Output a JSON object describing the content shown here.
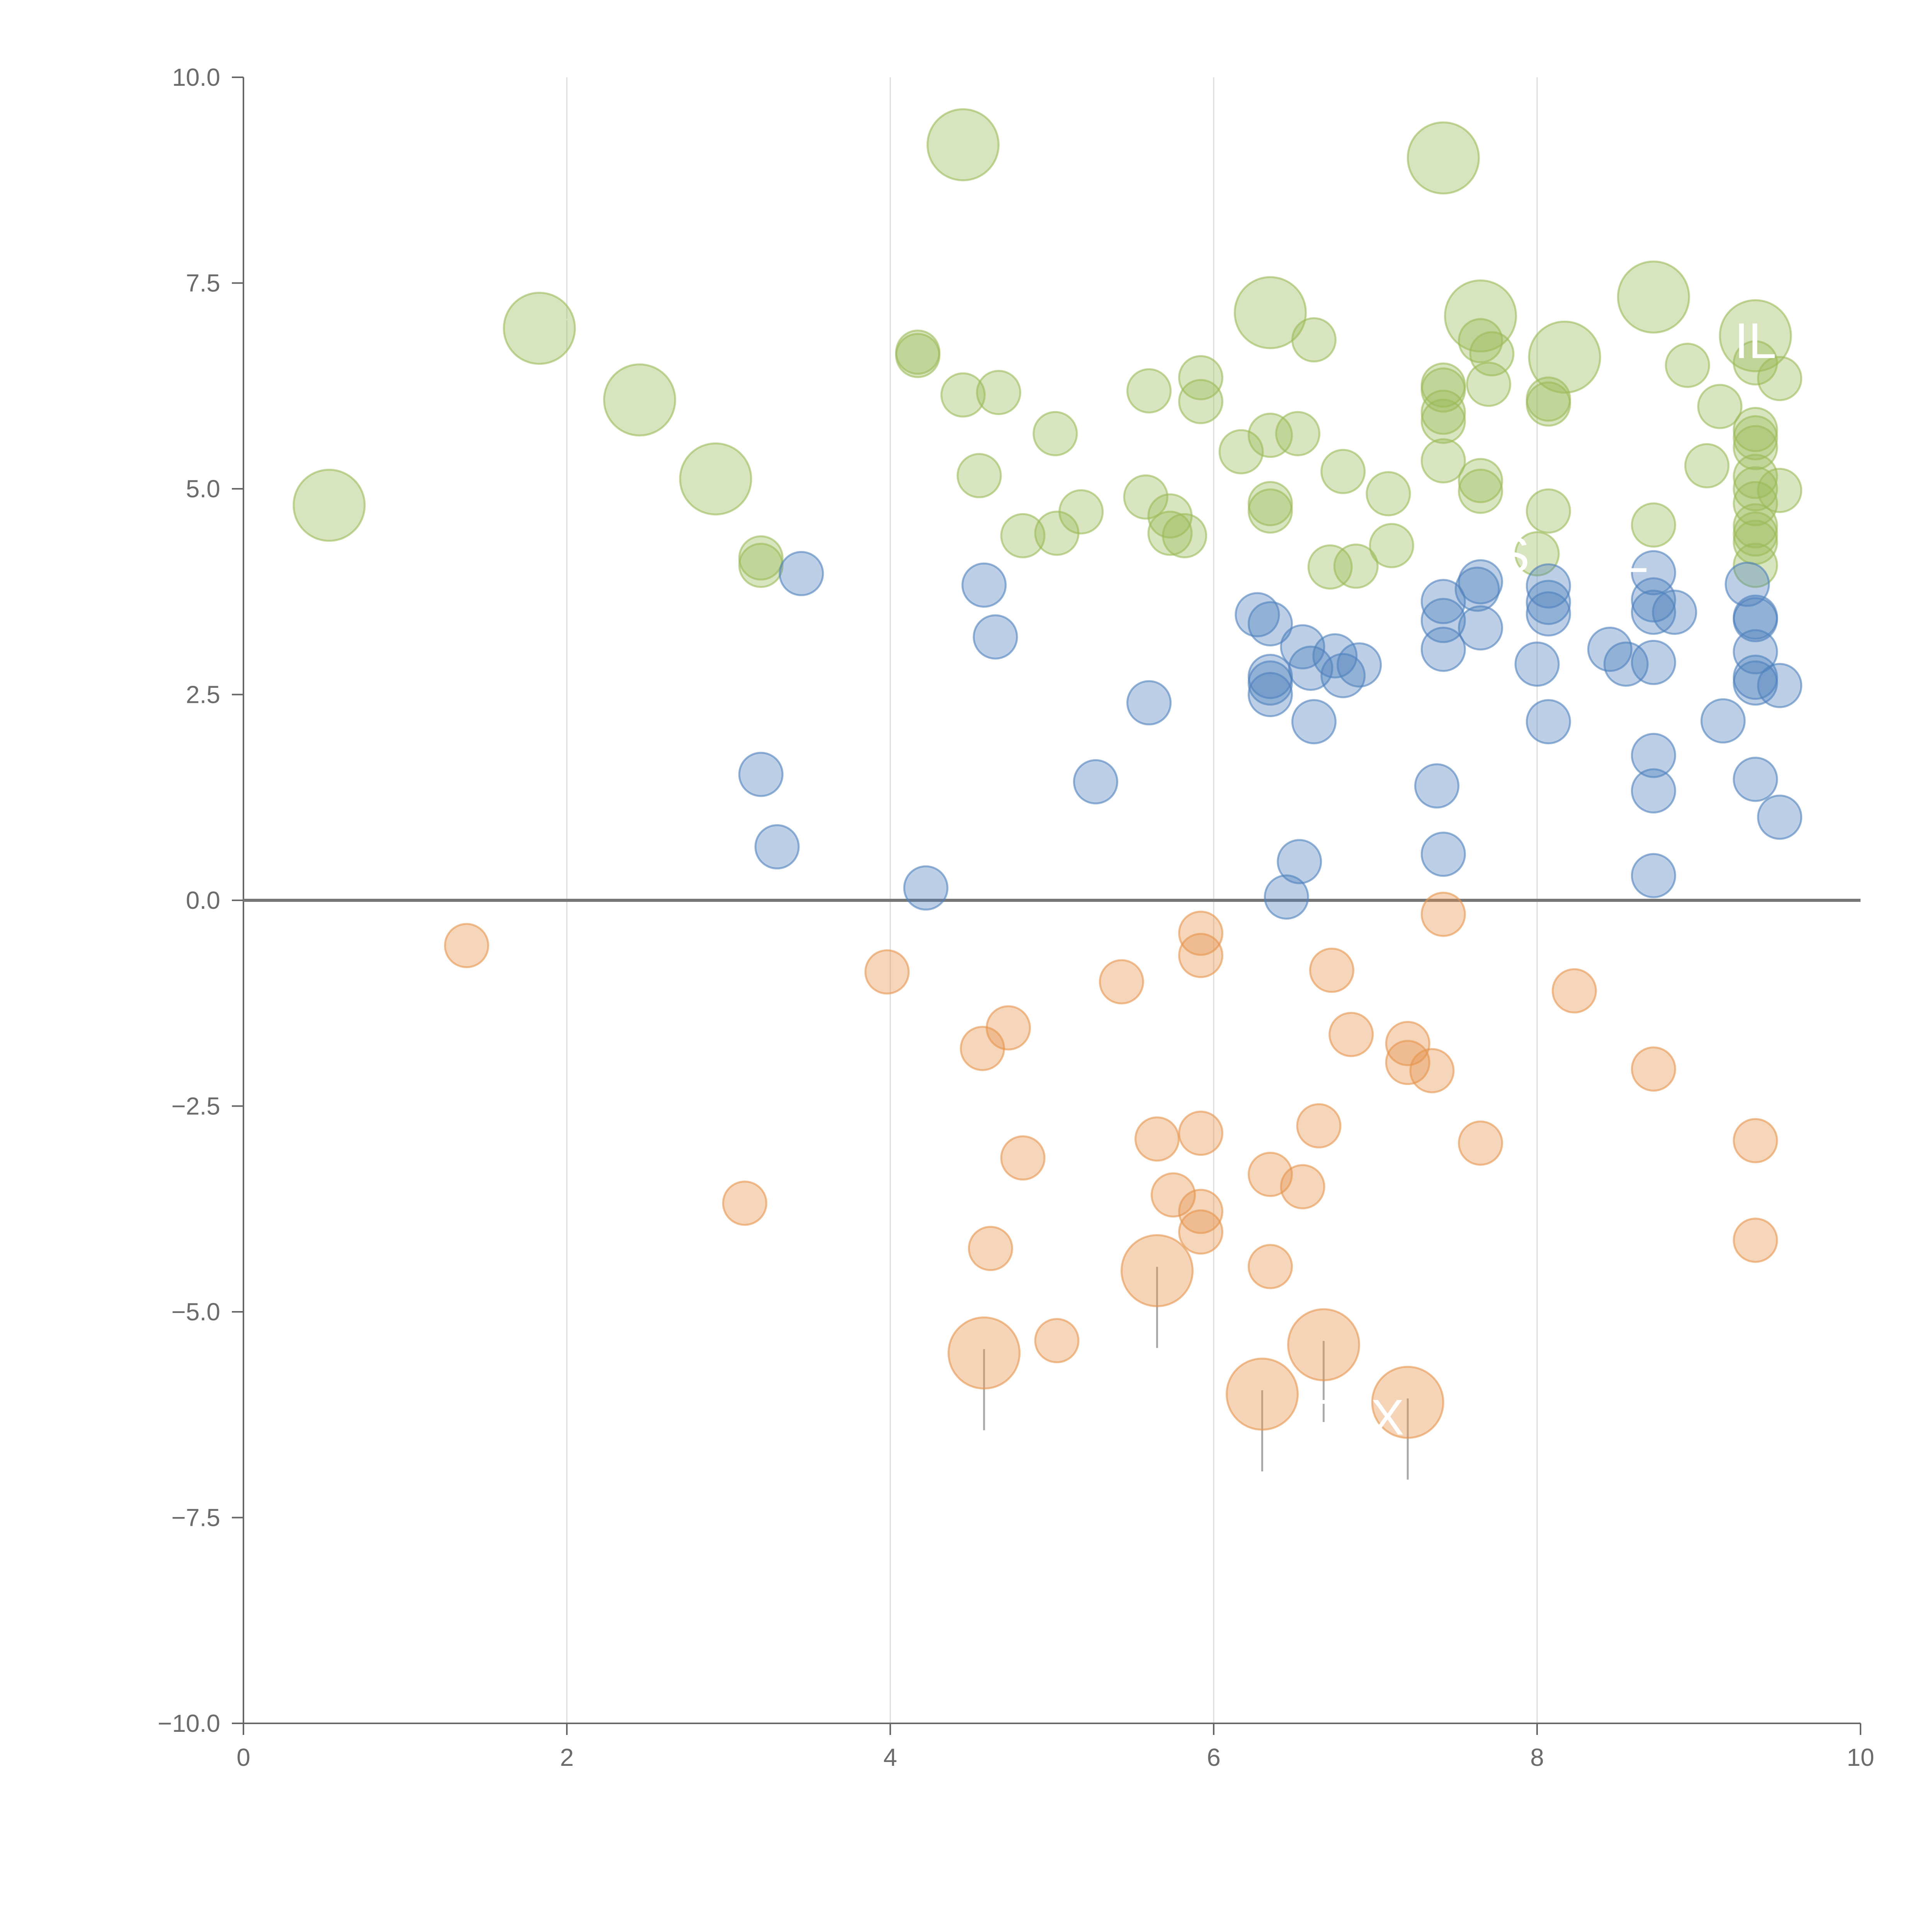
{
  "chart_data": {
    "type": "scatter",
    "title": "",
    "xlabel": "",
    "ylabel": "",
    "xlim": [
      0,
      10
    ],
    "ylim": [
      -10,
      10
    ],
    "x_ticks": [
      0,
      2,
      4,
      6,
      8,
      10
    ],
    "x_tick_labels": [
      "0",
      "2",
      "4",
      "6",
      "8",
      "10"
    ],
    "y_ticks": [
      -10,
      -7.5,
      -5,
      -2.5,
      0,
      2.5,
      5,
      7.5,
      10
    ],
    "y_tick_labels": [
      "−10.0",
      "−7.5",
      "−5.0",
      "−2.5",
      "0.0",
      "2.5",
      "5.0",
      "7.5",
      "10.0"
    ],
    "grid": "vertical",
    "reference_line_y": 0,
    "colors": {
      "high": "#9bbb59",
      "mid": "#4f81bd",
      "low": "#e6944d",
      "axis": "#666666",
      "grid": "#dddddd",
      "label": "#ffffff",
      "leader_light": "#ffffff",
      "leader_dark": "#aaaaaa"
    },
    "series": [
      {
        "name": "high",
        "points": [
          [
            0.53,
            4.8,
            1
          ],
          [
            1.83,
            6.95,
            1
          ],
          [
            2.45,
            6.08,
            1
          ],
          [
            2.92,
            5.12,
            1
          ],
          [
            4.45,
            9.18,
            1
          ],
          [
            7.42,
            9.02,
            1
          ],
          [
            6.35,
            7.14,
            1
          ],
          [
            7.65,
            7.1,
            1
          ],
          [
            8.17,
            6.6,
            1
          ],
          [
            8.72,
            7.33,
            1
          ],
          [
            9.35,
            6.86,
            1
          ],
          [
            3.2,
            4.16,
            0
          ],
          [
            3.2,
            4.07,
            0
          ],
          [
            4.17,
            6.66,
            0
          ],
          [
            4.17,
            6.62,
            0
          ],
          [
            4.45,
            6.14,
            0
          ],
          [
            4.67,
            6.17,
            0
          ],
          [
            4.55,
            5.16,
            0
          ],
          [
            4.82,
            4.43,
            0
          ],
          [
            5.02,
            5.67,
            0
          ],
          [
            5.03,
            4.46,
            0
          ],
          [
            5.18,
            4.72,
            0
          ],
          [
            5.6,
            6.19,
            0
          ],
          [
            5.58,
            4.9,
            0
          ],
          [
            5.73,
            4.67,
            0
          ],
          [
            5.73,
            4.46,
            0
          ],
          [
            5.82,
            4.43,
            0
          ],
          [
            5.92,
            6.35,
            0
          ],
          [
            5.92,
            6.06,
            0
          ],
          [
            6.17,
            5.45,
            0
          ],
          [
            6.35,
            5.65,
            0
          ],
          [
            6.35,
            4.82,
            0
          ],
          [
            6.35,
            4.73,
            0
          ],
          [
            6.52,
            5.67,
            0
          ],
          [
            6.62,
            6.81,
            0
          ],
          [
            6.72,
            4.05,
            0
          ],
          [
            6.8,
            5.21,
            0
          ],
          [
            6.88,
            4.06,
            0
          ],
          [
            7.08,
            4.94,
            0
          ],
          [
            7.1,
            4.31,
            0
          ],
          [
            7.42,
            6.26,
            0
          ],
          [
            7.42,
            6.2,
            0
          ],
          [
            7.42,
            5.93,
            0
          ],
          [
            7.42,
            5.82,
            0
          ],
          [
            7.42,
            5.34,
            0
          ],
          [
            7.65,
            6.8,
            0
          ],
          [
            7.72,
            6.64,
            0
          ],
          [
            7.7,
            6.27,
            0
          ],
          [
            7.65,
            5.1,
            0
          ],
          [
            7.65,
            4.97,
            0
          ],
          [
            8.07,
            6.09,
            0
          ],
          [
            8.07,
            6.03,
            0
          ],
          [
            8.07,
            4.73,
            0
          ],
          [
            8.0,
            4.21,
            0
          ],
          [
            8.72,
            4.56,
            0
          ],
          [
            8.93,
            6.5,
            0
          ],
          [
            9.13,
            6.0,
            0
          ],
          [
            9.05,
            5.28,
            0
          ],
          [
            9.35,
            6.53,
            0
          ],
          [
            9.35,
            5.72,
            0
          ],
          [
            9.35,
            5.62,
            0
          ],
          [
            9.35,
            5.5,
            0
          ],
          [
            9.35,
            5.15,
            0
          ],
          [
            9.35,
            5.0,
            0
          ],
          [
            9.35,
            4.82,
            0
          ],
          [
            9.35,
            4.55,
            0
          ],
          [
            9.35,
            4.45,
            0
          ],
          [
            9.35,
            4.35,
            0
          ],
          [
            9.35,
            4.07,
            0
          ],
          [
            9.5,
            6.34,
            0
          ],
          [
            9.5,
            4.98,
            0
          ]
        ]
      },
      {
        "name": "mid",
        "points": [
          [
            3.45,
            3.97,
            0
          ],
          [
            3.2,
            1.53,
            0
          ],
          [
            3.3,
            0.65,
            0
          ],
          [
            4.22,
            0.15,
            0
          ],
          [
            4.58,
            3.83,
            0
          ],
          [
            4.65,
            3.2,
            0
          ],
          [
            5.27,
            1.44,
            0
          ],
          [
            5.6,
            2.4,
            0
          ],
          [
            6.27,
            3.47,
            0
          ],
          [
            6.35,
            3.36,
            0
          ],
          [
            6.35,
            2.72,
            0
          ],
          [
            6.35,
            2.64,
            0
          ],
          [
            6.35,
            2.5,
            0
          ],
          [
            6.55,
            3.08,
            0
          ],
          [
            6.6,
            2.82,
            0
          ],
          [
            6.75,
            2.97,
            0
          ],
          [
            6.8,
            2.73,
            0
          ],
          [
            6.9,
            2.86,
            0
          ],
          [
            6.62,
            2.17,
            0
          ],
          [
            6.53,
            0.47,
            0
          ],
          [
            6.45,
            0.04,
            0
          ],
          [
            7.38,
            1.39,
            0
          ],
          [
            7.42,
            3.63,
            0
          ],
          [
            7.42,
            3.4,
            0
          ],
          [
            7.42,
            3.05,
            0
          ],
          [
            7.42,
            0.56,
            0
          ],
          [
            7.65,
            3.87,
            0
          ],
          [
            7.63,
            3.78,
            0
          ],
          [
            7.65,
            3.31,
            0
          ],
          [
            8.07,
            3.82,
            0
          ],
          [
            8.07,
            3.62,
            0
          ],
          [
            8.07,
            3.48,
            0
          ],
          [
            8.0,
            2.87,
            0
          ],
          [
            8.07,
            2.17,
            0
          ],
          [
            8.45,
            3.05,
            0
          ],
          [
            8.55,
            2.87,
            0
          ],
          [
            8.72,
            3.98,
            0
          ],
          [
            8.72,
            3.65,
            0
          ],
          [
            8.72,
            3.5,
            0
          ],
          [
            8.85,
            3.5,
            0
          ],
          [
            8.72,
            2.89,
            0
          ],
          [
            8.72,
            1.76,
            0
          ],
          [
            8.72,
            1.33,
            0
          ],
          [
            8.72,
            0.3,
            0
          ],
          [
            9.3,
            3.84,
            0
          ],
          [
            9.35,
            3.44,
            0
          ],
          [
            9.35,
            3.41,
            0
          ],
          [
            9.35,
            3.02,
            0
          ],
          [
            9.35,
            2.71,
            0
          ],
          [
            9.35,
            2.64,
            0
          ],
          [
            9.5,
            2.61,
            0
          ],
          [
            9.15,
            2.18,
            0
          ],
          [
            9.35,
            1.47,
            0
          ],
          [
            9.5,
            1.01,
            0
          ]
        ]
      },
      {
        "name": "low",
        "points": [
          [
            1.38,
            -0.55,
            0
          ],
          [
            3.98,
            -0.87,
            0
          ],
          [
            3.1,
            -3.68,
            0
          ],
          [
            4.57,
            -1.8,
            0
          ],
          [
            4.73,
            -1.55,
            0
          ],
          [
            4.82,
            -3.13,
            0
          ],
          [
            4.62,
            -4.23,
            0
          ],
          [
            5.03,
            -5.35,
            0
          ],
          [
            5.43,
            -0.99,
            0
          ],
          [
            5.65,
            -2.9,
            0
          ],
          [
            5.75,
            -3.58,
            0
          ],
          [
            5.92,
            -0.4,
            0
          ],
          [
            5.92,
            -0.67,
            0
          ],
          [
            5.92,
            -2.83,
            0
          ],
          [
            5.92,
            -3.78,
            0
          ],
          [
            5.92,
            -4.03,
            0
          ],
          [
            6.35,
            -3.33,
            0
          ],
          [
            6.35,
            -4.45,
            0
          ],
          [
            6.55,
            -3.48,
            0
          ],
          [
            6.65,
            -2.74,
            0
          ],
          [
            6.73,
            -0.85,
            0
          ],
          [
            6.85,
            -1.63,
            0
          ],
          [
            7.2,
            -1.74,
            0
          ],
          [
            7.2,
            -1.97,
            0
          ],
          [
            7.35,
            -2.07,
            0
          ],
          [
            7.42,
            -0.17,
            0
          ],
          [
            7.65,
            -2.95,
            0
          ],
          [
            8.23,
            -1.1,
            0
          ],
          [
            8.72,
            -2.05,
            0
          ],
          [
            9.35,
            -2.92,
            0
          ],
          [
            9.35,
            -4.13,
            0
          ],
          [
            4.58,
            -5.5,
            1
          ],
          [
            5.65,
            -4.5,
            1
          ],
          [
            6.3,
            -6.0,
            1
          ],
          [
            6.68,
            -5.4,
            1
          ],
          [
            7.2,
            -6.1,
            1
          ]
        ]
      }
    ],
    "point_labels": [
      {
        "text": "IL",
        "x": 9.35,
        "y": 6.8
      },
      {
        "text": "S",
        "x": 7.85,
        "y": 4.2
      },
      {
        "text": "L",
        "x": 8.6,
        "y": 4.2
      },
      {
        "text": "TMX",
        "x": 6.85,
        "y": -6.28
      }
    ]
  }
}
